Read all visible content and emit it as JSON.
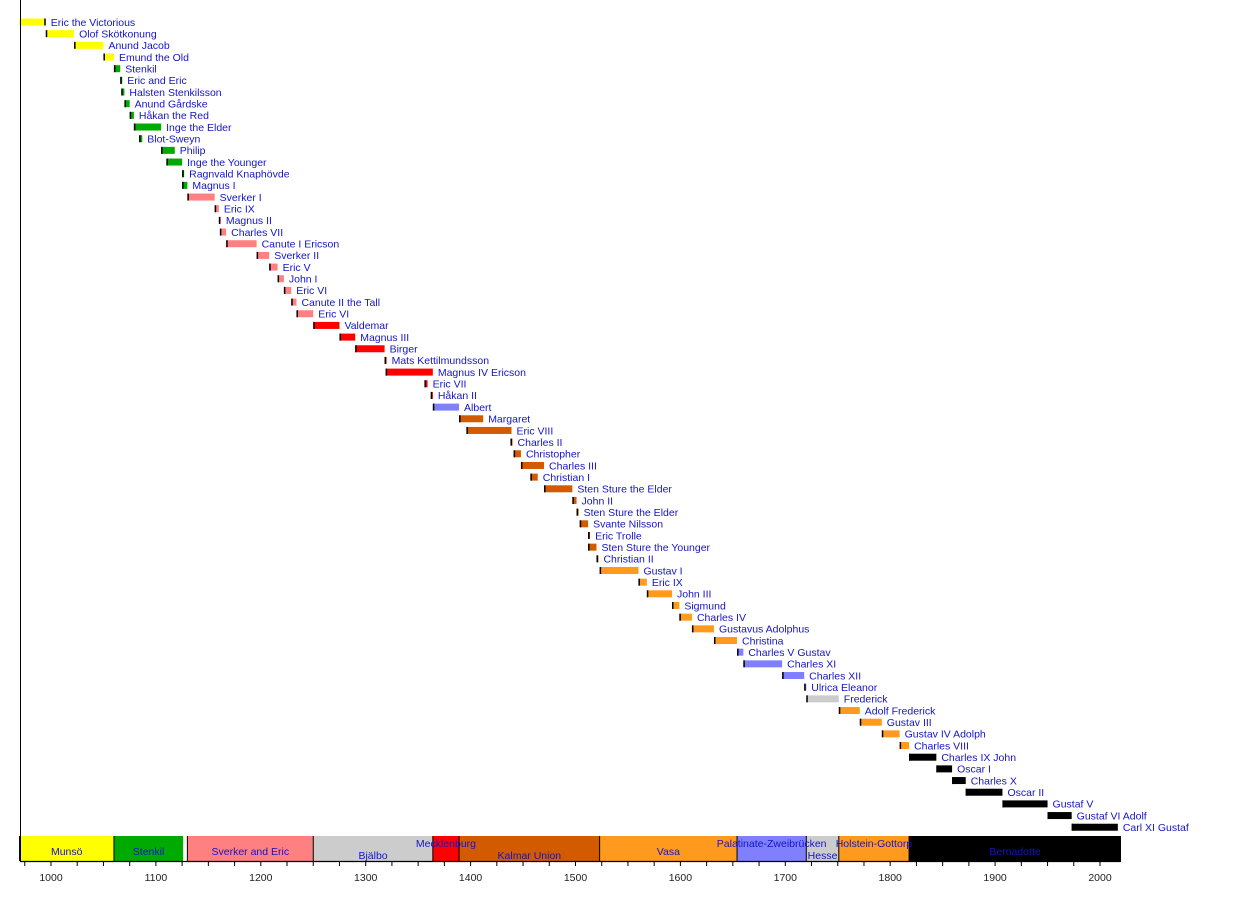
{
  "chart_data": {
    "type": "timeline",
    "title": "",
    "xlabel": "",
    "ylabel": "",
    "xlim": [
      970,
      2020
    ],
    "xticks": [
      1000,
      1100,
      1200,
      1300,
      1400,
      1500,
      1600,
      1700,
      1800,
      1900,
      2000
    ],
    "minor_tick_step": 25,
    "colors": {
      "munso": "#ffff00",
      "stenkil": "#00aa00",
      "sverker": "#ff8080",
      "bjalbo": "#ff0000",
      "mecklenburg": "#8080ff",
      "kalmar": "#d45a00",
      "vasa": "#ff9a1f",
      "palatinate": "#8080ff",
      "hesse": "#cccccc",
      "holstein": "#ff9a1f",
      "bernadotte": "#000000",
      "label": "#1414c8"
    },
    "dynasties": [
      {
        "name": "Munsö",
        "start": 970,
        "end": 1060,
        "color": "#ffff00"
      },
      {
        "name": "Stenkil",
        "start": 1060,
        "end": 1126,
        "color": "#00aa00"
      },
      {
        "name": "Sverker and Eric",
        "start": 1130,
        "end": 1250,
        "color": "#ff8080"
      },
      {
        "name": "Bjälbo",
        "start": 1250,
        "end": 1364,
        "color": "#cccccc"
      },
      {
        "name": "Mecklenburg",
        "start": 1364,
        "end": 1389,
        "color": "#ff0000"
      },
      {
        "name": "Kalmar Union",
        "start": 1389,
        "end": 1523,
        "color": "#d45a00"
      },
      {
        "name": "Vasa",
        "start": 1523,
        "end": 1654,
        "color": "#ff9a1f"
      },
      {
        "name": "Palatinate-Zweibrücken",
        "start": 1654,
        "end": 1720,
        "color": "#8080ff"
      },
      {
        "name": "Hesse",
        "start": 1720,
        "end": 1751,
        "color": "#cccccc"
      },
      {
        "name": "Holstein-Gottorp",
        "start": 1751,
        "end": 1818,
        "color": "#ff9a1f"
      },
      {
        "name": "Bernadotte",
        "start": 1818,
        "end": 2020,
        "color": "#000000"
      }
    ],
    "monarchs": [
      {
        "name": "Eric the Victorious",
        "start": 970,
        "end": 995,
        "color": "#ffff00"
      },
      {
        "name": "Olof Skötkonung",
        "start": 995,
        "end": 1022,
        "color": "#ffff00"
      },
      {
        "name": "Anund Jacob",
        "start": 1022,
        "end": 1050,
        "color": "#ffff00"
      },
      {
        "name": "Emund the Old",
        "start": 1050,
        "end": 1060,
        "color": "#ffff00"
      },
      {
        "name": "Stenkil",
        "start": 1060,
        "end": 1066,
        "color": "#00aa00"
      },
      {
        "name": "Eric and Eric",
        "start": 1066,
        "end": 1067,
        "color": "#00aa00"
      },
      {
        "name": "Halsten Stenkilsson",
        "start": 1067,
        "end": 1070,
        "color": "#00aa00"
      },
      {
        "name": "Anund Gårdske",
        "start": 1070,
        "end": 1075,
        "color": "#00aa00"
      },
      {
        "name": "Håkan the Red",
        "start": 1075,
        "end": 1079,
        "color": "#00aa00"
      },
      {
        "name": "Inge the Elder",
        "start": 1079,
        "end": 1105,
        "color": "#00aa00"
      },
      {
        "name": "Blot-Sweyn",
        "start": 1084,
        "end": 1087,
        "color": "#00aa00"
      },
      {
        "name": "Philip",
        "start": 1105,
        "end": 1118,
        "color": "#00aa00"
      },
      {
        "name": "Inge the Younger",
        "start": 1110,
        "end": 1125,
        "color": "#00aa00"
      },
      {
        "name": "Ragnvald Knaphövde",
        "start": 1125,
        "end": 1126,
        "color": "#00aa00"
      },
      {
        "name": "Magnus I",
        "start": 1125,
        "end": 1130,
        "color": "#00aa00"
      },
      {
        "name": "Sverker I",
        "start": 1130,
        "end": 1156,
        "color": "#ff8080"
      },
      {
        "name": "Eric IX",
        "start": 1156,
        "end": 1160,
        "color": "#ff8080"
      },
      {
        "name": "Magnus II",
        "start": 1160,
        "end": 1161,
        "color": "#ff8080"
      },
      {
        "name": "Charles VII",
        "start": 1161,
        "end": 1167,
        "color": "#ff8080"
      },
      {
        "name": "Canute I Ericson",
        "start": 1167,
        "end": 1196,
        "color": "#ff8080"
      },
      {
        "name": "Sverker II",
        "start": 1196,
        "end": 1208,
        "color": "#ff8080"
      },
      {
        "name": "Eric V",
        "start": 1208,
        "end": 1216,
        "color": "#ff8080"
      },
      {
        "name": "John I",
        "start": 1216,
        "end": 1222,
        "color": "#ff8080"
      },
      {
        "name": "Eric VI",
        "start": 1222,
        "end": 1229,
        "color": "#ff8080"
      },
      {
        "name": "Canute II the Tall",
        "start": 1229,
        "end": 1234,
        "color": "#ff8080"
      },
      {
        "name": "Eric VI",
        "start": 1234,
        "end": 1250,
        "color": "#ff8080"
      },
      {
        "name": "Valdemar",
        "start": 1250,
        "end": 1275,
        "color": "#ff0000"
      },
      {
        "name": "Magnus III",
        "start": 1275,
        "end": 1290,
        "color": "#ff0000"
      },
      {
        "name": "Birger",
        "start": 1290,
        "end": 1318,
        "color": "#ff0000"
      },
      {
        "name": "Mats Kettilmundsson",
        "start": 1318,
        "end": 1319,
        "color": "#ff0000"
      },
      {
        "name": "Magnus IV Ericson",
        "start": 1319,
        "end": 1364,
        "color": "#ff0000"
      },
      {
        "name": "Eric VII",
        "start": 1356,
        "end": 1359,
        "color": "#ff0000"
      },
      {
        "name": "Håkan II",
        "start": 1362,
        "end": 1364,
        "color": "#ff0000"
      },
      {
        "name": "Albert",
        "start": 1364,
        "end": 1389,
        "color": "#8080ff"
      },
      {
        "name": "Margaret",
        "start": 1389,
        "end": 1412,
        "color": "#d45a00"
      },
      {
        "name": "Eric VIII",
        "start": 1396,
        "end": 1439,
        "color": "#d45a00"
      },
      {
        "name": "Charles II",
        "start": 1438,
        "end": 1440,
        "color": "#d45a00"
      },
      {
        "name": "Christopher",
        "start": 1441,
        "end": 1448,
        "color": "#d45a00"
      },
      {
        "name": "Charles III",
        "start": 1448,
        "end": 1470,
        "color": "#d45a00"
      },
      {
        "name": "Christian I",
        "start": 1457,
        "end": 1464,
        "color": "#d45a00"
      },
      {
        "name": "Sten Sture the Elder",
        "start": 1470,
        "end": 1497,
        "color": "#d45a00"
      },
      {
        "name": "John II",
        "start": 1497,
        "end": 1501,
        "color": "#d45a00"
      },
      {
        "name": "Sten Sture the Elder",
        "start": 1501,
        "end": 1503,
        "color": "#d45a00"
      },
      {
        "name": "Svante Nilsson",
        "start": 1504,
        "end": 1512,
        "color": "#d45a00"
      },
      {
        "name": "Eric Trolle",
        "start": 1512,
        "end": 1512.5,
        "color": "#d45a00"
      },
      {
        "name": "Sten Sture the Younger",
        "start": 1512,
        "end": 1520,
        "color": "#d45a00"
      },
      {
        "name": "Christian II",
        "start": 1520,
        "end": 1521,
        "color": "#d45a00"
      },
      {
        "name": "Gustav I",
        "start": 1523,
        "end": 1560,
        "color": "#ff9a1f"
      },
      {
        "name": "Eric IX",
        "start": 1560,
        "end": 1568,
        "color": "#ff9a1f"
      },
      {
        "name": "John III",
        "start": 1568,
        "end": 1592,
        "color": "#ff9a1f"
      },
      {
        "name": "Sigmund",
        "start": 1592,
        "end": 1599,
        "color": "#ff9a1f"
      },
      {
        "name": "Charles IV",
        "start": 1599,
        "end": 1611,
        "color": "#ff9a1f"
      },
      {
        "name": "Gustavus Adolphus",
        "start": 1611,
        "end": 1632,
        "color": "#ff9a1f"
      },
      {
        "name": "Christina",
        "start": 1632,
        "end": 1654,
        "color": "#ff9a1f"
      },
      {
        "name": "Charles V Gustav",
        "start": 1654,
        "end": 1660,
        "color": "#8080ff"
      },
      {
        "name": "Charles XI",
        "start": 1660,
        "end": 1697,
        "color": "#8080ff"
      },
      {
        "name": "Charles XII",
        "start": 1697,
        "end": 1718,
        "color": "#8080ff"
      },
      {
        "name": "Ulrica Eleanor",
        "start": 1718,
        "end": 1720,
        "color": "#8080ff"
      },
      {
        "name": "Frederick",
        "start": 1720,
        "end": 1751,
        "color": "#cccccc"
      },
      {
        "name": "Adolf Frederick",
        "start": 1751,
        "end": 1771,
        "color": "#ff9a1f"
      },
      {
        "name": "Gustav III",
        "start": 1771,
        "end": 1792,
        "color": "#ff9a1f"
      },
      {
        "name": "Gustav IV Adolph",
        "start": 1792,
        "end": 1809,
        "color": "#ff9a1f"
      },
      {
        "name": "Charles VIII",
        "start": 1809,
        "end": 1818,
        "color": "#ff9a1f"
      },
      {
        "name": "Charles IX John",
        "start": 1818,
        "end": 1844,
        "color": "#000000"
      },
      {
        "name": "Oscar I",
        "start": 1844,
        "end": 1859,
        "color": "#000000"
      },
      {
        "name": "Charles X",
        "start": 1859,
        "end": 1872,
        "color": "#000000"
      },
      {
        "name": "Oscar II",
        "start": 1872,
        "end": 1907,
        "color": "#000000"
      },
      {
        "name": "Gustaf V",
        "start": 1907,
        "end": 1950,
        "color": "#000000"
      },
      {
        "name": "Gustaf VI Adolf",
        "start": 1950,
        "end": 1973,
        "color": "#000000"
      },
      {
        "name": "Carl XI Gustaf",
        "start": 1973,
        "end": 2017,
        "color": "#000000"
      }
    ]
  }
}
